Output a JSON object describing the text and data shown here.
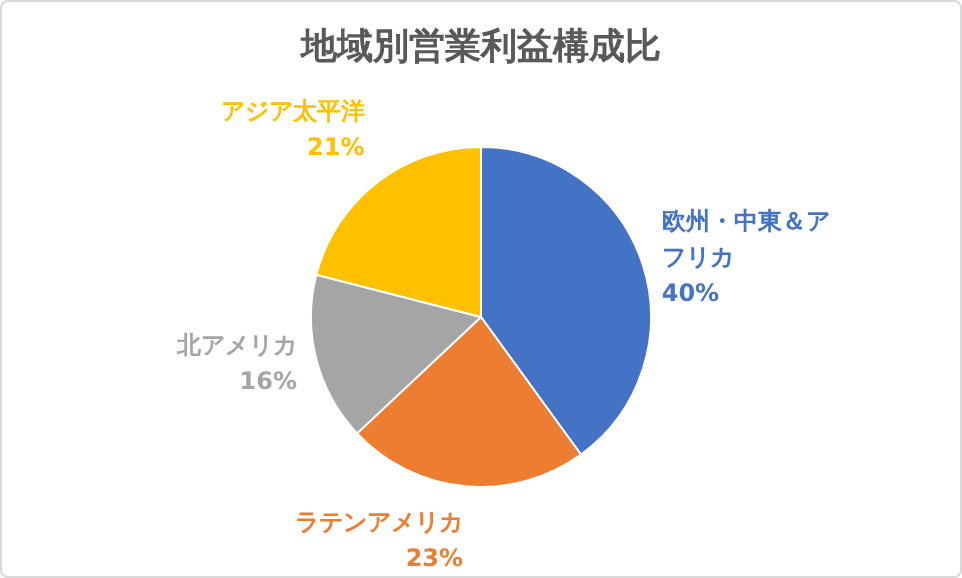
{
  "chart_data": {
    "type": "pie",
    "title": "地域別営業利益構成比",
    "categories": [
      "欧州・中東＆アフリカ",
      "ラテンアメリカ",
      "北アメリカ",
      "アジア太平洋"
    ],
    "values": [
      40,
      23,
      16,
      21
    ],
    "colors": [
      "#4472c4",
      "#ed7d31",
      "#a5a5a5",
      "#ffc000"
    ],
    "value_labels": [
      "40%",
      "23%",
      "16%",
      "21%"
    ],
    "legend": false
  }
}
